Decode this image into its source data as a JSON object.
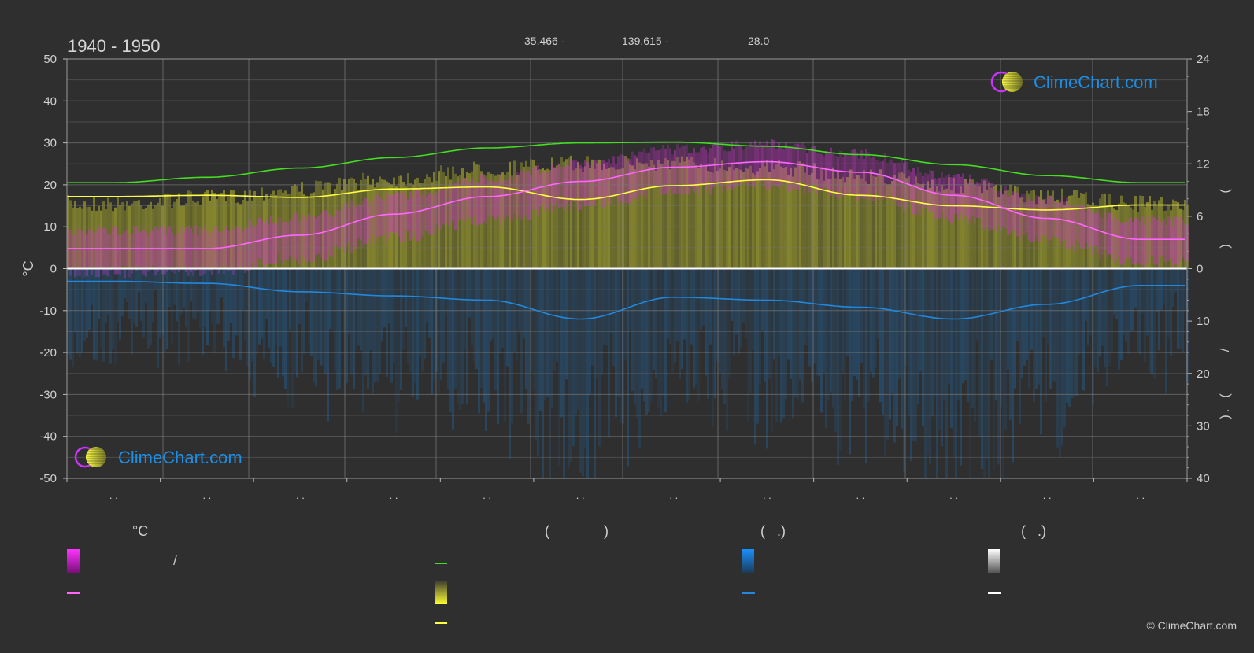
{
  "header": {
    "period": "1940 - 1950",
    "latitude": "35.466 -",
    "longitude": "139.615 -",
    "elevation": "28.0"
  },
  "chart_data": {
    "type": "area",
    "left_axis": {
      "label": "°C",
      "range": [
        -50,
        50
      ],
      "ticks": [
        50,
        40,
        30,
        20,
        10,
        0,
        -10,
        -20,
        -30,
        -40,
        -50
      ]
    },
    "right_axis": {
      "ticks_top": [
        24,
        18,
        12,
        6,
        0
      ],
      "ticks_bottom": [
        10,
        20,
        30,
        40
      ],
      "label_fragments": [
        "(",
        ")",
        "/",
        "(",
        ".",
        ")"
      ]
    },
    "x_tick_labels": [
      ". .",
      ". .",
      ". .",
      ". .",
      ". .",
      ". .",
      ". .",
      ". .",
      ". .",
      ". .",
      ". .",
      ". ."
    ],
    "months": 12,
    "series": [
      {
        "key": "daylight",
        "color": "#44dd22",
        "values": [
          20.5,
          21.8,
          24.0,
          26.5,
          28.8,
          30.0,
          30.2,
          29.2,
          27.2,
          24.8,
          22.2,
          20.5
        ]
      },
      {
        "key": "sunshine",
        "color": "#ffff44",
        "values": [
          17.2,
          17.5,
          17.0,
          19.0,
          19.5,
          16.5,
          19.8,
          21.2,
          17.5,
          15.0,
          14.0,
          15.2
        ]
      },
      {
        "key": "mean_temperature",
        "color": "#ff66ff",
        "values": [
          4.8,
          4.8,
          8.0,
          13.0,
          17.2,
          20.8,
          24.2,
          25.5,
          23.0,
          17.5,
          12.0,
          7.0
        ]
      },
      {
        "key": "precipitation",
        "color": "#2288dd",
        "values": [
          -3.0,
          -3.5,
          -5.5,
          -6.5,
          -7.5,
          -12.0,
          -6.8,
          -7.5,
          -9.2,
          -12.0,
          -8.5,
          -4.0
        ]
      }
    ]
  },
  "watermarks": {
    "brand": "ClimeChart.com"
  },
  "legend": {
    "col1": {
      "heading": "°C",
      "slash": "/"
    },
    "col2": {
      "heading_open": "(",
      "heading_close": ")"
    },
    "col3": {
      "heading": "(   .)"
    },
    "col4": {
      "heading": "(   .)"
    }
  },
  "copyright": "© ClimeChart.com",
  "colors": {
    "background": "#2f2f2f",
    "temperature_band": "#dd33dd",
    "sunshine_band": "#b0b033",
    "precipitation_band": "#1e6db0",
    "daylight": "#44dd22",
    "sunshine": "#ffff44",
    "temperature": "#ff66ff",
    "precipitation": "#2288dd",
    "brand_blue": "#1b8fe6"
  }
}
